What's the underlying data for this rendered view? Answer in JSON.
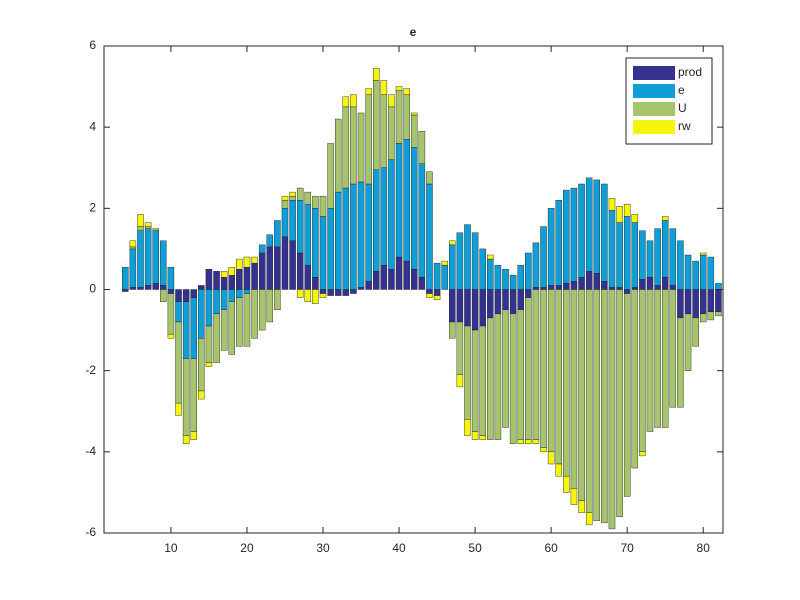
{
  "chart_data": {
    "type": "stacked_bar",
    "title": "e",
    "x": [
      4,
      5,
      6,
      7,
      8,
      9,
      10,
      11,
      12,
      13,
      14,
      15,
      16,
      17,
      18,
      19,
      20,
      21,
      22,
      23,
      24,
      25,
      26,
      27,
      28,
      29,
      30,
      31,
      32,
      33,
      34,
      35,
      36,
      37,
      38,
      39,
      40,
      41,
      42,
      43,
      44,
      45,
      46,
      47,
      48,
      49,
      50,
      51,
      52,
      53,
      54,
      55,
      56,
      57,
      58,
      59,
      60,
      61,
      62,
      63,
      64,
      65,
      66,
      67,
      68,
      69,
      70,
      71,
      72,
      73,
      74,
      75,
      76,
      77,
      78,
      79,
      80,
      81,
      82
    ],
    "series": [
      {
        "name": "prod",
        "color": "#35318f",
        "values": [
          -0.05,
          0.05,
          0.05,
          0.1,
          0.15,
          0.1,
          -0.1,
          -0.3,
          -0.3,
          -0.2,
          0.1,
          0.5,
          0.45,
          0.3,
          0.35,
          0.5,
          0.55,
          0.65,
          0.9,
          1.05,
          1.05,
          1.3,
          1.2,
          0.9,
          0.6,
          0.3,
          -0.1,
          -0.15,
          -0.15,
          -0.15,
          -0.1,
          0.05,
          0.2,
          0.45,
          0.6,
          0.5,
          0.8,
          0.7,
          0.5,
          0.3,
          -0.1,
          -0.15,
          0,
          -0.8,
          -0.8,
          -0.9,
          -1.0,
          -0.9,
          -0.7,
          -0.6,
          -0.5,
          -0.6,
          -0.5,
          -0.2,
          0.05,
          0.05,
          0.1,
          0.1,
          0.15,
          0.2,
          0.3,
          0.45,
          0.4,
          0.2,
          0.05,
          0.05,
          -0.1,
          0.05,
          0.25,
          0.3,
          0.1,
          0.3,
          0.1,
          -0.7,
          -0.6,
          -0.7,
          -0.6,
          -0.55,
          -0.55
        ]
      },
      {
        "name": "e",
        "color": "#0f9fd6",
        "values": [
          0.55,
          0.95,
          1.4,
          1.4,
          1.3,
          1.1,
          0.55,
          -0.5,
          -1.4,
          -1.5,
          -1.2,
          -0.9,
          -0.6,
          -0.5,
          -0.3,
          -0.2,
          -0.1,
          0,
          0.2,
          0.3,
          0.65,
          0.7,
          1.0,
          1.3,
          1.5,
          1.7,
          1.8,
          2.0,
          2.4,
          2.5,
          2.6,
          2.6,
          2.4,
          2.5,
          2.4,
          2.7,
          2.8,
          3.0,
          3.0,
          2.8,
          2.6,
          0.65,
          0.6,
          1.1,
          1.4,
          1.6,
          1.4,
          1.0,
          0.75,
          0.6,
          0.5,
          0.35,
          0.6,
          0.9,
          1.1,
          1.5,
          1.9,
          2.1,
          2.3,
          2.3,
          2.3,
          2.3,
          2.3,
          2.4,
          1.9,
          1.6,
          1.8,
          1.6,
          1.2,
          0.9,
          1.4,
          1.4,
          1.4,
          1.2,
          0.85,
          0.7,
          0.85,
          0.8,
          0.15
        ]
      },
      {
        "name": "U",
        "color": "#a6c46c",
        "values": [
          0,
          0.05,
          0.1,
          0.05,
          0.05,
          -0.3,
          -1.0,
          -2.0,
          -1.9,
          -1.8,
          -1.3,
          -0.9,
          -1.2,
          -1.0,
          -1.3,
          -1.2,
          -1.3,
          -1.2,
          -1.0,
          -0.8,
          -0.5,
          0.2,
          0.1,
          0.3,
          0.3,
          0.3,
          0.5,
          1.6,
          1.8,
          2.0,
          1.9,
          1.7,
          2.2,
          2.2,
          1.8,
          1.3,
          1.3,
          1.1,
          0.8,
          0.8,
          0.3,
          0,
          0,
          -0.4,
          -1.3,
          -2.3,
          -2.5,
          -2.7,
          -3.0,
          -3.1,
          -2.9,
          -3.2,
          -3.2,
          -3.5,
          -3.7,
          -3.9,
          -4.0,
          -4.3,
          -4.6,
          -4.9,
          -5.2,
          -5.5,
          -5.7,
          -5.75,
          -5.9,
          -5.6,
          -5.0,
          -4.4,
          -4.0,
          -3.5,
          -3.4,
          -3.4,
          -2.9,
          -2.2,
          -1.4,
          -0.7,
          -0.2,
          -0.2,
          -0.1
        ]
      },
      {
        "name": "rw",
        "color": "#f5f50c",
        "values": [
          0,
          0.15,
          0.3,
          0.1,
          0,
          0,
          -0.1,
          -0.3,
          -0.2,
          -0.2,
          -0.2,
          -0.1,
          0,
          0.15,
          0.2,
          0.25,
          0.25,
          0.15,
          0,
          0,
          0,
          0.1,
          0.1,
          -0.2,
          -0.3,
          -0.35,
          -0.1,
          0,
          0,
          0.25,
          0.3,
          0,
          0.15,
          0.3,
          0.35,
          0.3,
          0.1,
          0.15,
          0.05,
          0,
          -0.1,
          -0.1,
          0.1,
          0.1,
          -0.3,
          -0.4,
          -0.2,
          -0.1,
          0.1,
          0,
          0,
          0,
          -0.1,
          -0.1,
          -0.1,
          -0.1,
          -0.3,
          -0.3,
          -0.4,
          -0.4,
          -0.3,
          -0.3,
          0,
          0,
          0.3,
          0.4,
          0.3,
          0.2,
          -0.1,
          0,
          0,
          0.1,
          0,
          0,
          0,
          0,
          0.05,
          0,
          0
        ]
      }
    ],
    "xlim": [
      1.2,
      82.6
    ],
    "xticks": [
      10,
      20,
      30,
      40,
      50,
      60,
      70,
      80
    ],
    "ylim": [
      -6,
      6
    ],
    "yticks": [
      -6,
      -4,
      -2,
      0,
      2,
      4,
      6
    ],
    "grid": false,
    "legend": "northeast"
  }
}
